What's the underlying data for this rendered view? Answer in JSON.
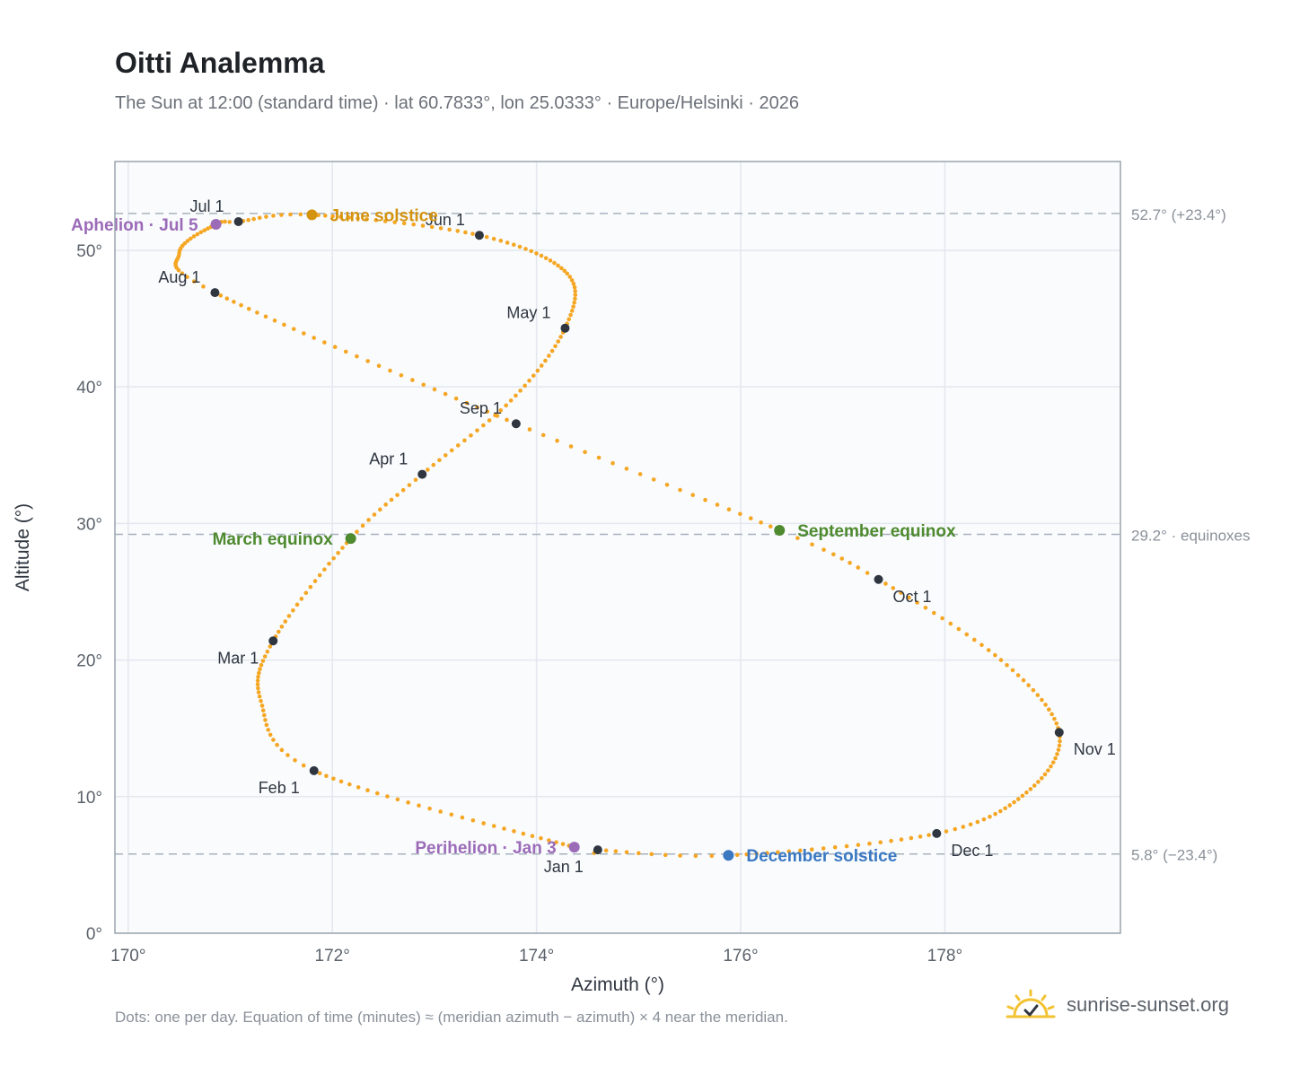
{
  "title": "Oitti Analemma",
  "subtitle": "The Sun at 12:00 (standard time) · lat 60.7833°, lon 25.0333° · Europe/Helsinki · 2026",
  "footnote": "Dots: one per day. Equation of time (minutes) ≈ (meridian azimuth − azimuth) × 4 near the meridian.",
  "brand": {
    "text": "sunrise-sunset.org",
    "icon": "sun-logo-icon"
  },
  "chart_data": {
    "type": "scatter",
    "xlabel": "Azimuth (°)",
    "ylabel": "Altitude (°)",
    "xlim": [
      169.87,
      179.72
    ],
    "ylim": [
      0,
      56.5
    ],
    "xticks": [
      170,
      172,
      174,
      176,
      178
    ],
    "xtick_labels": [
      "170°",
      "172°",
      "174°",
      "176°",
      "178°"
    ],
    "yticks": [
      0,
      10,
      20,
      30,
      40,
      50
    ],
    "ytick_labels": [
      "0°",
      "10°",
      "20°",
      "30°",
      "40°",
      "50°"
    ],
    "grid": true,
    "colors": {
      "path": "#f5a623",
      "month": "#2f3640",
      "solstice_june": "#d4930f",
      "solstice_december": "#3a78c2",
      "equinox": "#4e8a2e",
      "apsis": "#9b6bb8",
      "refline": "#a8b2bd"
    },
    "reference_lines": [
      {
        "y": 52.7,
        "label": "52.7° (+23.4°)"
      },
      {
        "y": 29.2,
        "label": "29.2° · equinoxes"
      },
      {
        "y": 5.8,
        "label": "5.8° (−23.4°)"
      }
    ],
    "path_anchors": [
      {
        "day": 1,
        "az": 174.6,
        "alt": 6.1
      },
      {
        "day": 3,
        "az": 174.37,
        "alt": 6.3
      },
      {
        "day": 32,
        "az": 171.82,
        "alt": 11.9
      },
      {
        "day": 46,
        "az": 171.3,
        "alt": 17.0
      },
      {
        "day": 60,
        "az": 171.42,
        "alt": 21.4
      },
      {
        "day": 79,
        "az": 172.18,
        "alt": 28.9
      },
      {
        "day": 91,
        "az": 172.88,
        "alt": 33.6
      },
      {
        "day": 106,
        "az": 173.75,
        "alt": 39.0
      },
      {
        "day": 121,
        "az": 174.28,
        "alt": 44.3
      },
      {
        "day": 135,
        "az": 174.3,
        "alt": 48.3
      },
      {
        "day": 152,
        "az": 173.44,
        "alt": 51.1
      },
      {
        "day": 172,
        "az": 171.8,
        "alt": 52.6
      },
      {
        "day": 182,
        "az": 171.08,
        "alt": 52.1
      },
      {
        "day": 186,
        "az": 170.86,
        "alt": 51.9
      },
      {
        "day": 200,
        "az": 170.5,
        "alt": 49.8
      },
      {
        "day": 213,
        "az": 170.85,
        "alt": 46.9
      },
      {
        "day": 244,
        "az": 173.8,
        "alt": 37.3
      },
      {
        "day": 265,
        "az": 176.38,
        "alt": 29.5
      },
      {
        "day": 274,
        "az": 177.35,
        "alt": 25.9
      },
      {
        "day": 290,
        "az": 178.55,
        "alt": 20.0
      },
      {
        "day": 305,
        "az": 179.12,
        "alt": 14.7
      },
      {
        "day": 320,
        "az": 178.8,
        "alt": 10.3
      },
      {
        "day": 335,
        "az": 177.92,
        "alt": 7.3
      },
      {
        "day": 355,
        "az": 175.88,
        "alt": 5.7
      },
      {
        "day": 365,
        "az": 174.6,
        "alt": 6.1
      }
    ],
    "month_markers": [
      {
        "label": "Jan 1",
        "az": 174.6,
        "alt": 6.1,
        "pos": "below-left"
      },
      {
        "label": "Feb 1",
        "az": 171.82,
        "alt": 11.9,
        "pos": "below-left"
      },
      {
        "label": "Mar 1",
        "az": 171.42,
        "alt": 21.4,
        "pos": "below-left"
      },
      {
        "label": "Apr 1",
        "az": 172.88,
        "alt": 33.6,
        "pos": "above-left"
      },
      {
        "label": "May 1",
        "az": 174.28,
        "alt": 44.3,
        "pos": "above-left"
      },
      {
        "label": "Jun 1",
        "az": 173.44,
        "alt": 51.1,
        "pos": "above-left"
      },
      {
        "label": "Jul 1",
        "az": 171.08,
        "alt": 52.1,
        "pos": "above-left"
      },
      {
        "label": "Aug 1",
        "az": 170.85,
        "alt": 46.9,
        "pos": "above-left"
      },
      {
        "label": "Sep 1",
        "az": 173.8,
        "alt": 37.3,
        "pos": "above-left"
      },
      {
        "label": "Oct 1",
        "az": 177.35,
        "alt": 25.9,
        "pos": "below-right"
      },
      {
        "label": "Nov 1",
        "az": 179.12,
        "alt": 14.7,
        "pos": "below-right"
      },
      {
        "label": "Dec 1",
        "az": 177.92,
        "alt": 7.3,
        "pos": "below-right"
      }
    ],
    "events": [
      {
        "label": "June solstice",
        "az": 171.8,
        "alt": 52.6,
        "color": "#d4930f",
        "pos": "right"
      },
      {
        "label": "December solstice",
        "az": 175.88,
        "alt": 5.7,
        "color": "#3a78c2",
        "pos": "right"
      },
      {
        "label": "March equinox",
        "az": 172.18,
        "alt": 28.9,
        "color": "#4e8a2e",
        "pos": "left"
      },
      {
        "label": "September equinox",
        "az": 176.38,
        "alt": 29.5,
        "color": "#4e8a2e",
        "pos": "right"
      },
      {
        "label": "Aphelion · Jul 5",
        "az": 170.86,
        "alt": 51.9,
        "color": "#9b6bb8",
        "pos": "left"
      },
      {
        "label": "Perihelion · Jan 3",
        "az": 174.37,
        "alt": 6.3,
        "color": "#9b6bb8",
        "pos": "left"
      }
    ]
  }
}
